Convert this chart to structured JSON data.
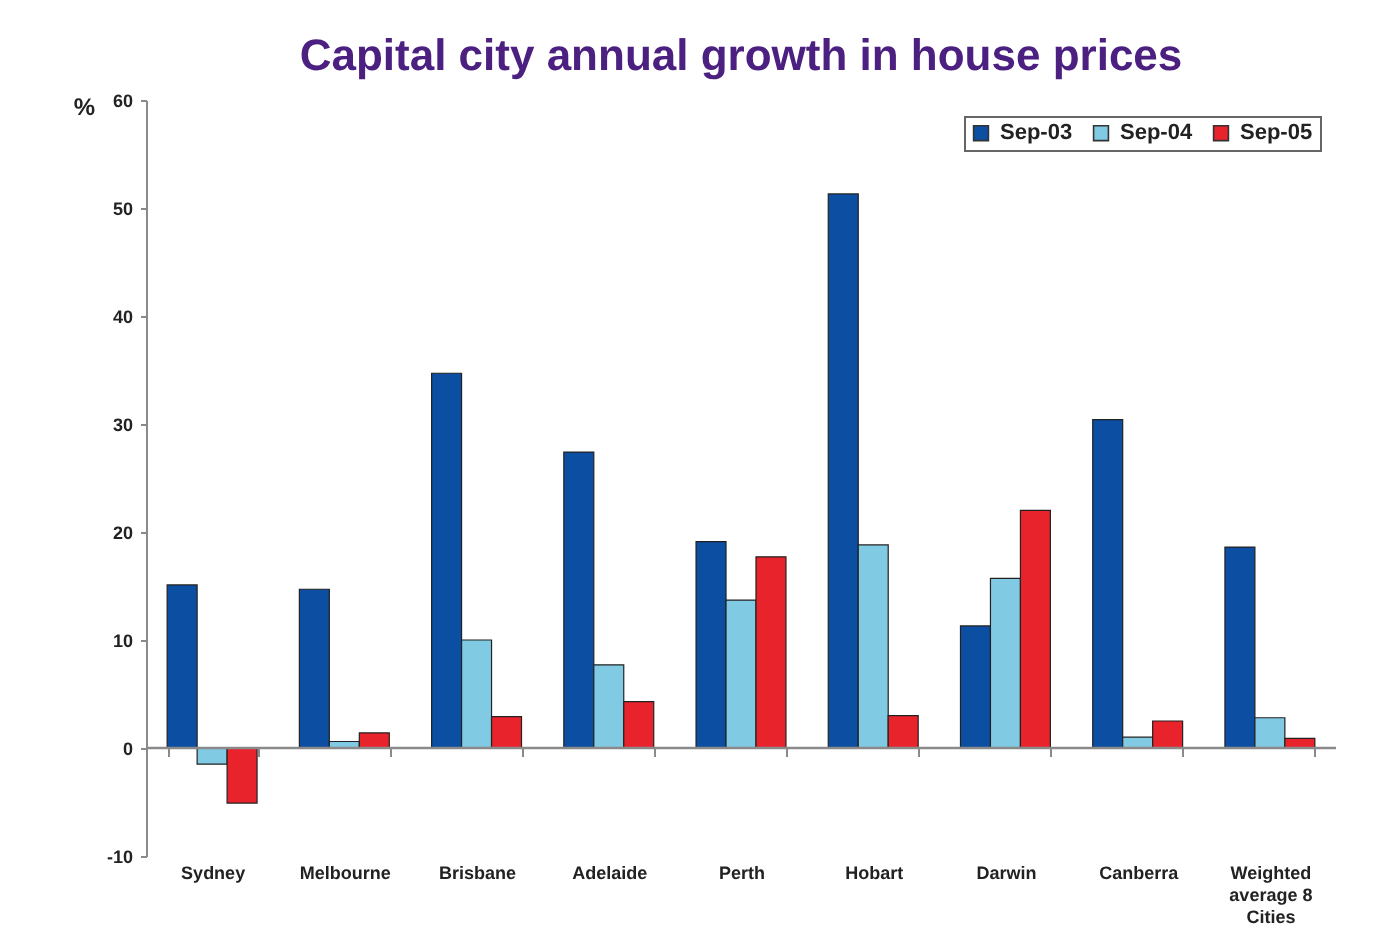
{
  "chart_data": {
    "type": "bar",
    "title": "Capital city annual growth in house prices",
    "ylabel": "%",
    "categories": [
      "Sydney",
      "Melbourne",
      "Brisbane",
      "Adelaide",
      "Perth",
      "Hobart",
      "Darwin",
      "Canberra",
      "Weighted average 8 Cities"
    ],
    "series": [
      {
        "name": "Sep-03",
        "color": "#0b4ea2",
        "values": [
          15.1,
          14.7,
          34.7,
          27.4,
          19.1,
          51.3,
          11.3,
          30.4,
          18.6
        ]
      },
      {
        "name": "Sep-04",
        "color": "#80cbe3",
        "values": [
          -1.5,
          0.6,
          10.0,
          7.7,
          13.7,
          18.8,
          15.7,
          1.0,
          2.8
        ]
      },
      {
        "name": "Sep-05",
        "color": "#e8232b",
        "values": [
          -5.1,
          1.4,
          2.9,
          4.3,
          17.7,
          3.0,
          22.0,
          2.5,
          0.9
        ]
      }
    ],
    "ylim": [
      -10,
      60
    ],
    "yticks": [
      -10,
      0,
      10,
      20,
      30,
      40,
      50,
      60
    ],
    "ref_lines": [
      {
        "axis": "y",
        "value": 0,
        "color": "#8a8a8a"
      }
    ],
    "legend": "top right",
    "grid": false
  }
}
